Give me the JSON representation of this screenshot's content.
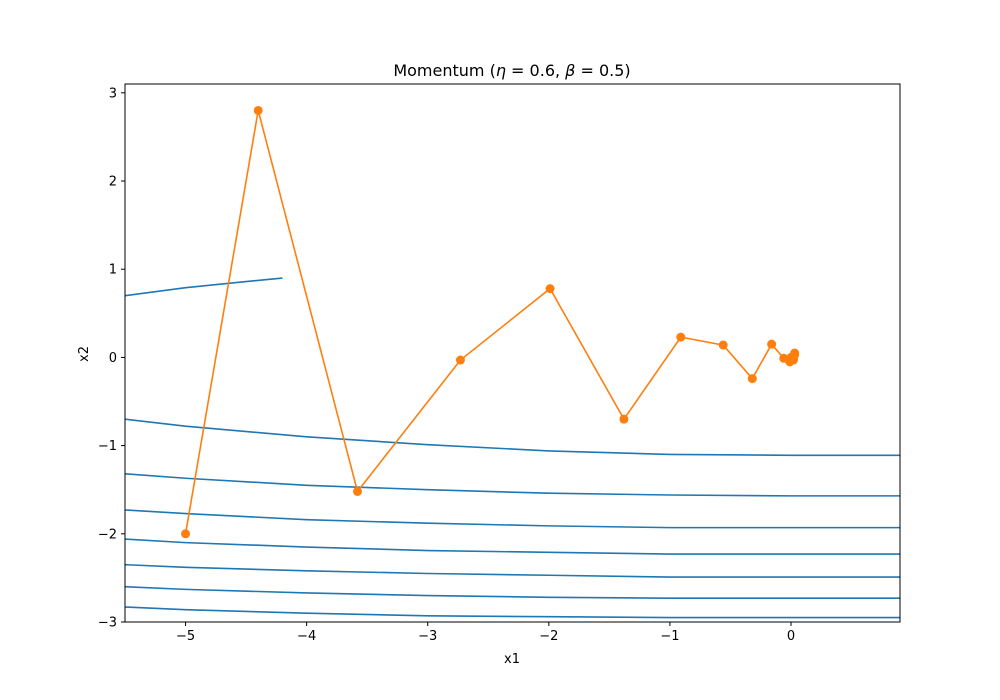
{
  "chart_data": {
    "type": "line",
    "title": "Momentum (η = 0.6, β = 0.5)",
    "title_parts": {
      "prefix": "Momentum (",
      "eta_symbol": "η",
      "eta_eq": " = 0.6, ",
      "beta_symbol": "β",
      "beta_eq": " = 0.5)"
    },
    "xlabel": "x1",
    "ylabel": "x2",
    "xlim": [
      -5.5,
      0.9
    ],
    "ylim": [
      -3.0,
      3.1
    ],
    "xticks": [
      -5,
      -4,
      -3,
      -2,
      -1,
      0
    ],
    "xtick_labels": [
      "−5",
      "−4",
      "−3",
      "−2",
      "−1",
      "0"
    ],
    "yticks": [
      -3,
      -2,
      -1,
      0,
      1,
      2,
      3
    ],
    "ytick_labels": [
      "−3",
      "−2",
      "−1",
      "0",
      "1",
      "2",
      "3"
    ],
    "grid": false,
    "colors": {
      "contour": "#1f77b4",
      "trajectory": "#ff7f0e"
    },
    "contours": [
      {
        "x": [
          -5.5,
          -5.0,
          -4.5,
          -4.2
        ],
        "y": [
          0.7,
          0.79,
          0.86,
          0.9
        ]
      },
      {
        "x": [
          -5.5,
          -5.0,
          -4.0,
          -3.0,
          -2.0,
          -1.0,
          0.0,
          0.9
        ],
        "y": [
          -0.7,
          -0.78,
          -0.9,
          -0.99,
          -1.06,
          -1.1,
          -1.11,
          -1.11
        ]
      },
      {
        "x": [
          -5.5,
          -5.0,
          -4.0,
          -3.0,
          -2.0,
          -1.0,
          0.0,
          0.9
        ],
        "y": [
          -1.32,
          -1.37,
          -1.45,
          -1.5,
          -1.54,
          -1.56,
          -1.57,
          -1.57
        ]
      },
      {
        "x": [
          -5.5,
          -5.0,
          -4.0,
          -3.0,
          -2.0,
          -1.0,
          0.0,
          0.9
        ],
        "y": [
          -1.73,
          -1.77,
          -1.84,
          -1.88,
          -1.91,
          -1.93,
          -1.93,
          -1.93
        ]
      },
      {
        "x": [
          -5.5,
          -5.0,
          -4.0,
          -3.0,
          -2.0,
          -1.0,
          0.0,
          0.9
        ],
        "y": [
          -2.06,
          -2.1,
          -2.15,
          -2.19,
          -2.21,
          -2.23,
          -2.23,
          -2.23
        ]
      },
      {
        "x": [
          -5.5,
          -5.0,
          -4.0,
          -3.0,
          -2.0,
          -1.0,
          0.0,
          0.9
        ],
        "y": [
          -2.35,
          -2.38,
          -2.42,
          -2.45,
          -2.47,
          -2.49,
          -2.49,
          -2.49
        ]
      },
      {
        "x": [
          -5.5,
          -5.0,
          -4.0,
          -3.0,
          -2.0,
          -1.0,
          0.0,
          0.9
        ],
        "y": [
          -2.6,
          -2.63,
          -2.67,
          -2.7,
          -2.72,
          -2.73,
          -2.73,
          -2.73
        ]
      },
      {
        "x": [
          -5.5,
          -5.0,
          -4.0,
          -3.0,
          -2.0,
          -1.0,
          0.0,
          0.9
        ],
        "y": [
          -2.83,
          -2.86,
          -2.9,
          -2.93,
          -2.94,
          -2.95,
          -2.95,
          -2.95
        ]
      }
    ],
    "trajectory": {
      "x": [
        -5.0,
        -4.4,
        -3.58,
        -2.73,
        -1.99,
        -1.38,
        -0.91,
        -0.56,
        -0.32,
        -0.16,
        -0.06,
        -0.01,
        0.02,
        0.03,
        0.03,
        0.02,
        0.01,
        0.0
      ],
      "y": [
        -2.0,
        2.8,
        -1.52,
        -0.03,
        0.78,
        -0.7,
        0.23,
        0.14,
        -0.24,
        0.15,
        -0.01,
        -0.05,
        -0.03,
        0.05,
        0.03,
        -0.02,
        -0.01,
        0.0
      ]
    }
  }
}
